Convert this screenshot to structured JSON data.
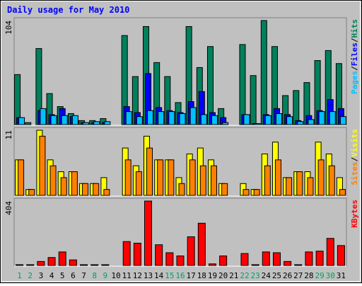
{
  "chart_data": [
    {
      "type": "bar",
      "title": "Daily usage for May 2010",
      "ylim": [
        0,
        104
      ],
      "yticks": [
        104
      ],
      "separator": "/",
      "series": [
        {
          "name": "Pages",
          "color": "#00c0ff",
          "values": [
            7,
            0,
            16,
            9,
            9,
            9,
            2,
            3,
            3,
            0,
            13,
            8,
            14,
            13,
            13,
            11,
            17,
            10,
            9,
            2,
            0,
            10,
            1,
            9,
            11,
            8,
            3,
            5,
            13,
            13,
            8
          ]
        },
        {
          "name": "Files",
          "color": "#0000ff",
          "values": [
            7,
            0,
            14,
            10,
            16,
            8,
            2,
            2,
            2,
            0,
            18,
            12,
            51,
            17,
            14,
            12,
            23,
            33,
            12,
            7,
            0,
            10,
            1,
            10,
            16,
            10,
            4,
            9,
            14,
            25,
            16
          ]
        },
        {
          "name": "Hits",
          "color": "#00805c",
          "values": [
            50,
            2,
            76,
            31,
            18,
            11,
            4,
            4,
            6,
            0,
            89,
            48,
            98,
            62,
            48,
            22,
            98,
            57,
            78,
            16,
            0,
            80,
            49,
            104,
            78,
            29,
            34,
            42,
            64,
            74,
            61
          ]
        }
      ]
    },
    {
      "type": "bar",
      "ylim": [
        0,
        11
      ],
      "yticks": [
        11
      ],
      "separator": "/",
      "series": [
        {
          "name": "Sites",
          "color": "#ff8000",
          "values": [
            6,
            1,
            10,
            5,
            3,
            4,
            2,
            2,
            1,
            0,
            6,
            4,
            8,
            6,
            6,
            2,
            6,
            5,
            5,
            2,
            0,
            1,
            1,
            5,
            6,
            3,
            4,
            3,
            6,
            5,
            1
          ]
        },
        {
          "name": "Visits",
          "color": "#ffff00",
          "values": [
            6,
            1,
            11,
            6,
            4,
            4,
            2,
            2,
            3,
            0,
            8,
            5,
            10,
            6,
            6,
            3,
            7,
            8,
            6,
            2,
            0,
            2,
            1,
            7,
            9,
            3,
            4,
            4,
            9,
            7,
            3
          ]
        }
      ]
    },
    {
      "type": "bar",
      "ylim": [
        0,
        404
      ],
      "yticks": [
        404
      ],
      "series": [
        {
          "name": "KBytes",
          "color": "#ff0000",
          "values": [
            5,
            5,
            25,
            50,
            85,
            35,
            5,
            5,
            5,
            0,
            150,
            140,
            404,
            130,
            80,
            60,
            180,
            265,
            10,
            60,
            0,
            75,
            5,
            85,
            80,
            25,
            5,
            85,
            90,
            170,
            125
          ]
        }
      ],
      "categories": [
        "1",
        "2",
        "3",
        "4",
        "5",
        "6",
        "7",
        "8",
        "9",
        "10",
        "11",
        "12",
        "13",
        "14",
        "15",
        "16",
        "17",
        "18",
        "19",
        "20",
        "21",
        "22",
        "23",
        "24",
        "25",
        "26",
        "27",
        "28",
        "29",
        "30",
        "31"
      ],
      "weekend": [
        true,
        true,
        false,
        false,
        false,
        false,
        false,
        true,
        true,
        false,
        false,
        false,
        false,
        false,
        true,
        true,
        false,
        false,
        false,
        false,
        false,
        true,
        true,
        false,
        false,
        false,
        false,
        false,
        true,
        true,
        false
      ],
      "category_color": "#008040",
      "weekend_color": "#00a060"
    }
  ]
}
